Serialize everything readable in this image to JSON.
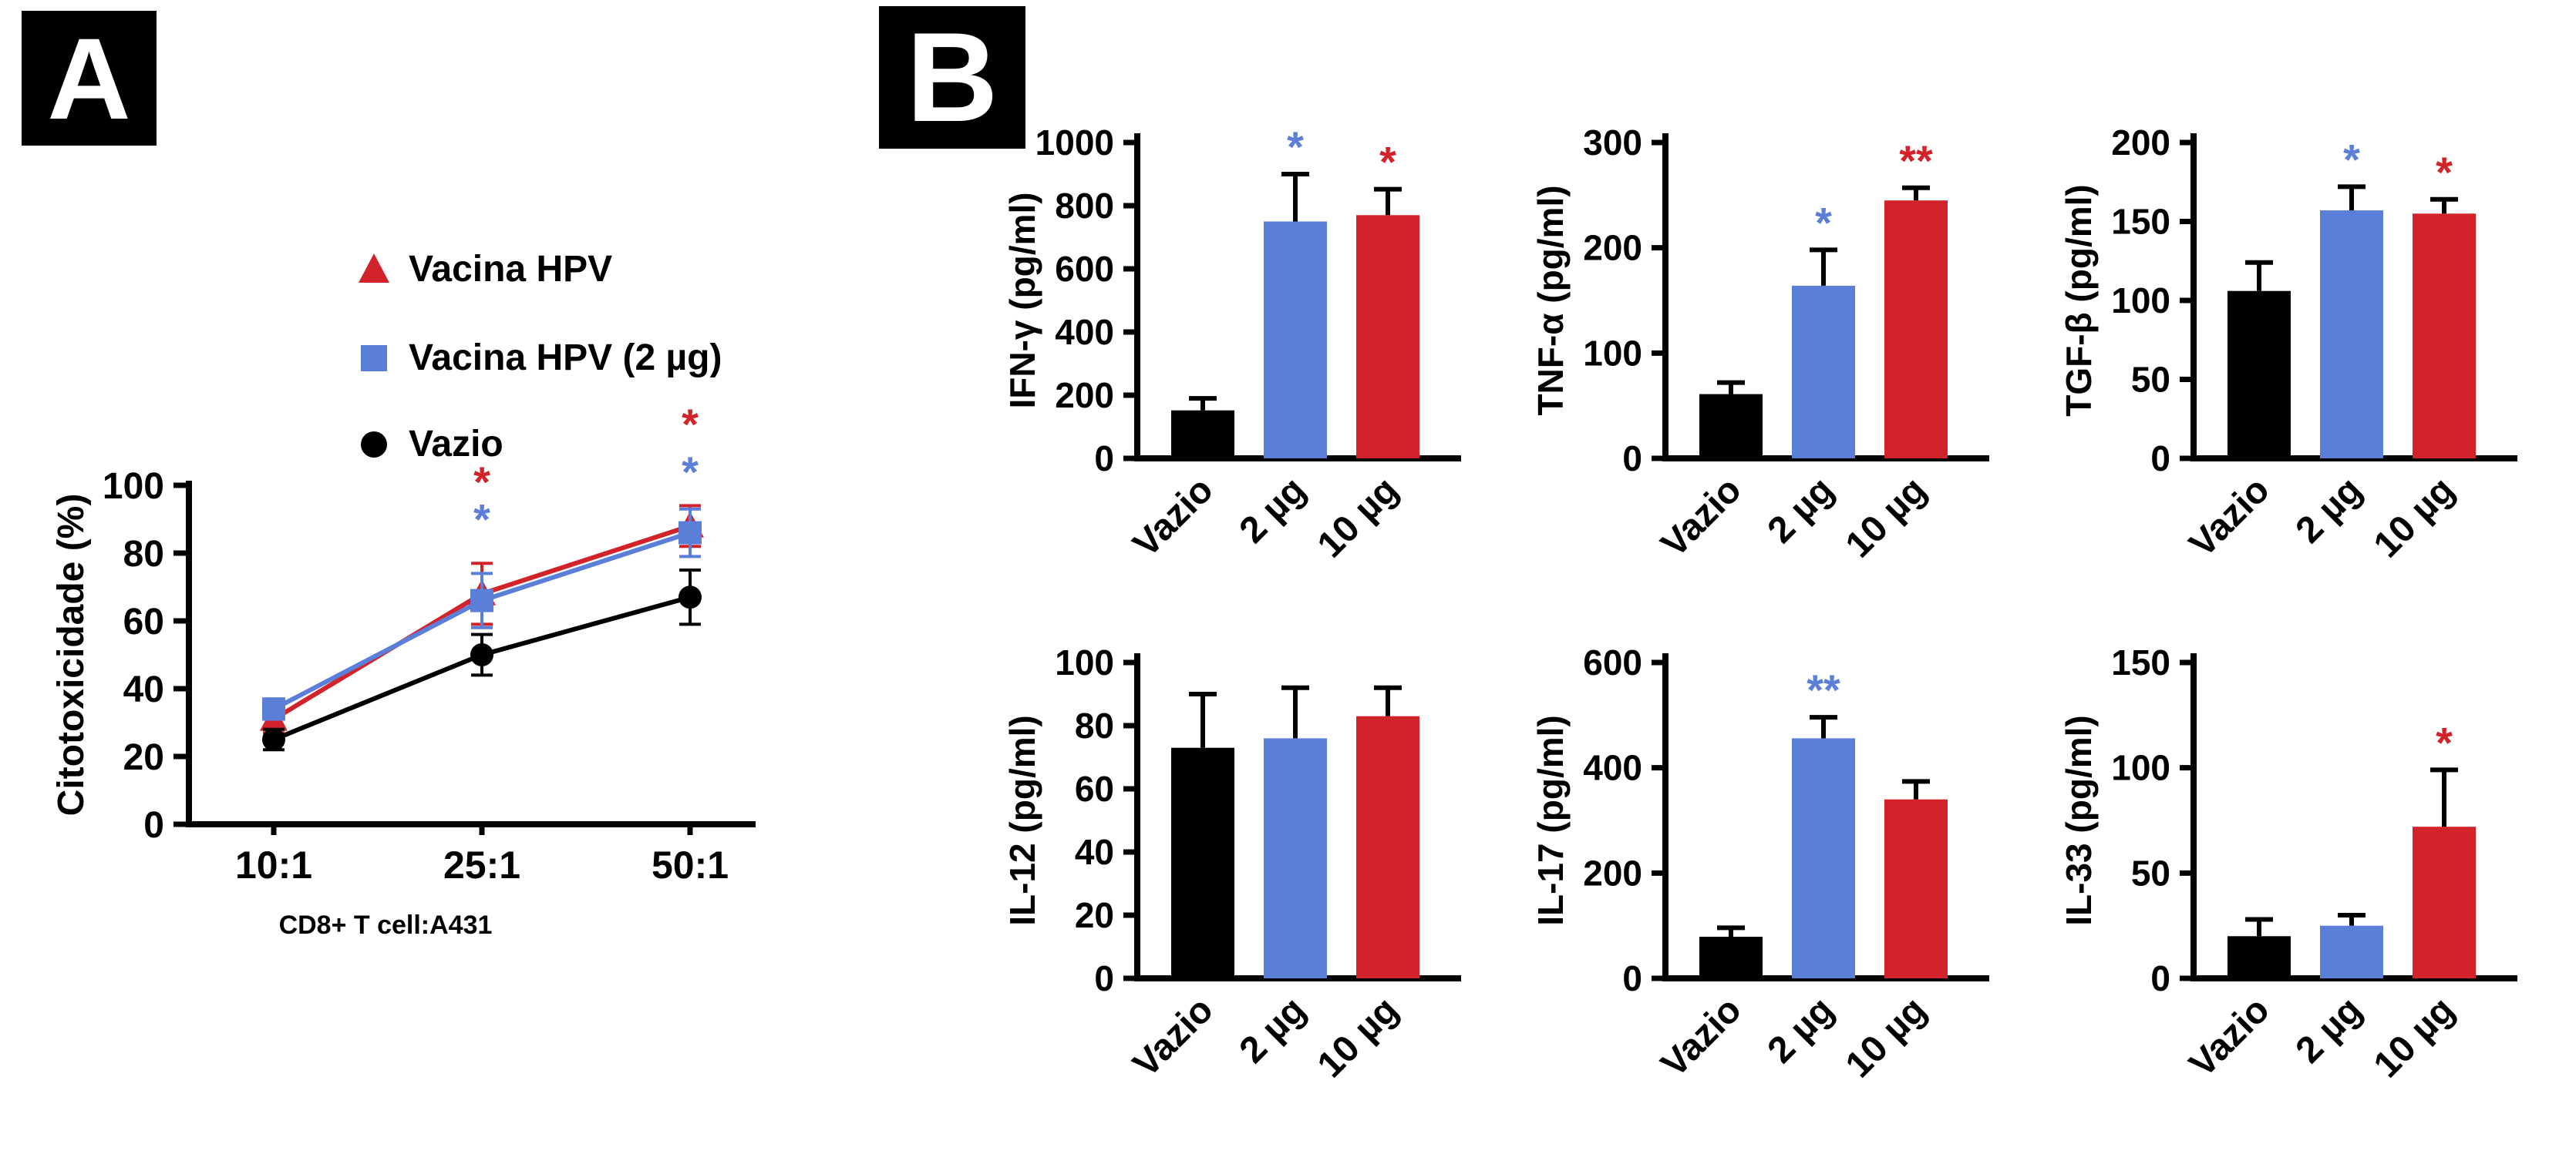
{
  "figure": {
    "panel_a_label": "A",
    "panel_b_label": "B"
  },
  "colors": {
    "black": "#000000",
    "blue": "#5b7ed9",
    "red": "#d2232a"
  },
  "chart_data": [
    {
      "id": "cytotoxicity",
      "type": "line",
      "title": "",
      "ylabel": "Citotoxicidade (%)",
      "xlabel": "CD8+ T cell:A431",
      "categories": [
        "10:1",
        "25:1",
        "50:1"
      ],
      "ylim": [
        0,
        100
      ],
      "yticks": [
        0,
        20,
        40,
        60,
        80,
        100
      ],
      "grid": false,
      "legend_position": "upper-left",
      "series": [
        {
          "name": "Vacina HPV",
          "color": "#d2232a",
          "marker": "triangle",
          "values": [
            31,
            68,
            88
          ],
          "errors": [
            4,
            9,
            6
          ]
        },
        {
          "name": "Vacina HPV (2 µg)",
          "color": "#5b7ed9",
          "marker": "square",
          "values": [
            34,
            66,
            86
          ],
          "errors": [
            3,
            8,
            7
          ]
        },
        {
          "name": "Vazio",
          "color": "#000000",
          "marker": "circle",
          "values": [
            25,
            50,
            67
          ],
          "errors": [
            3,
            6,
            8
          ]
        }
      ],
      "annotations": [
        {
          "x_index": 1,
          "y": 100,
          "text": "*",
          "color": "#d2232a"
        },
        {
          "x_index": 1,
          "y": 89,
          "text": "*",
          "color": "#5b7ed9"
        },
        {
          "x_index": 2,
          "y": 117,
          "text": "*",
          "color": "#d2232a"
        },
        {
          "x_index": 2,
          "y": 103,
          "text": "*",
          "color": "#5b7ed9"
        }
      ]
    },
    {
      "id": "ifn-gamma",
      "type": "bar",
      "ylabel": "IFN-γ (pg/ml)",
      "categories": [
        "Vazio",
        "2 µg",
        "10 µg"
      ],
      "values": [
        152,
        750,
        770
      ],
      "errors": [
        38,
        150,
        82
      ],
      "bar_colors": [
        "#000000",
        "#5b7ed9",
        "#d2232a"
      ],
      "ylim": [
        0,
        1000
      ],
      "yticks": [
        0,
        200,
        400,
        600,
        800,
        1000
      ],
      "stars": [
        "",
        "*",
        "*"
      ],
      "star_colors": [
        "",
        "#5b7ed9",
        "#d2232a"
      ]
    },
    {
      "id": "tnf-alpha",
      "type": "bar",
      "ylabel": "TNF-α (pg/ml)",
      "categories": [
        "Vazio",
        "2 µg",
        "10 µg"
      ],
      "values": [
        61,
        164,
        245
      ],
      "errors": [
        11,
        34,
        12
      ],
      "bar_colors": [
        "#000000",
        "#5b7ed9",
        "#d2232a"
      ],
      "ylim": [
        0,
        300
      ],
      "yticks": [
        0,
        100,
        200,
        300
      ],
      "stars": [
        "",
        "*",
        "**"
      ],
      "star_colors": [
        "",
        "#5b7ed9",
        "#d2232a"
      ]
    },
    {
      "id": "tgf-beta",
      "type": "bar",
      "ylabel": "TGF-β (pg/ml)",
      "categories": [
        "Vazio",
        "2 µg",
        "10 µg"
      ],
      "values": [
        106,
        157,
        155
      ],
      "errors": [
        18,
        15,
        9
      ],
      "bar_colors": [
        "#000000",
        "#5b7ed9",
        "#d2232a"
      ],
      "ylim": [
        0,
        200
      ],
      "yticks": [
        0,
        50,
        100,
        150,
        200
      ],
      "stars": [
        "",
        "*",
        "*"
      ],
      "star_colors": [
        "",
        "#5b7ed9",
        "#d2232a"
      ]
    },
    {
      "id": "il-12",
      "type": "bar",
      "ylabel": "IL-12 (pg/ml)",
      "categories": [
        "Vazio",
        "2 µg",
        "10 µg"
      ],
      "values": [
        73,
        76,
        83
      ],
      "errors": [
        17,
        16,
        9
      ],
      "bar_colors": [
        "#000000",
        "#5b7ed9",
        "#d2232a"
      ],
      "ylim": [
        0,
        100
      ],
      "yticks": [
        0,
        20,
        40,
        60,
        80,
        100
      ],
      "stars": [
        "",
        "",
        ""
      ],
      "star_colors": [
        "",
        "",
        ""
      ]
    },
    {
      "id": "il-17",
      "type": "bar",
      "ylabel": "IL-17 (pg/ml)",
      "categories": [
        "Vazio",
        "2 µg",
        "10 µg"
      ],
      "values": [
        79,
        456,
        340
      ],
      "errors": [
        17,
        40,
        34
      ],
      "bar_colors": [
        "#000000",
        "#5b7ed9",
        "#d2232a"
      ],
      "ylim": [
        0,
        600
      ],
      "yticks": [
        0,
        200,
        400,
        600
      ],
      "stars": [
        "",
        "**",
        ""
      ],
      "star_colors": [
        "",
        "#5b7ed9",
        ""
      ]
    },
    {
      "id": "il-33",
      "type": "bar",
      "ylabel": "IL-33 (pg/ml)",
      "categories": [
        "Vazio",
        "2 µg",
        "10 µg"
      ],
      "values": [
        20,
        25,
        72
      ],
      "errors": [
        8,
        5,
        27
      ],
      "bar_colors": [
        "#000000",
        "#5b7ed9",
        "#d2232a"
      ],
      "ylim": [
        0,
        150
      ],
      "yticks": [
        0,
        50,
        100,
        150
      ],
      "stars": [
        "",
        "",
        "*"
      ],
      "star_colors": [
        "",
        "",
        "#d2232a"
      ]
    }
  ]
}
